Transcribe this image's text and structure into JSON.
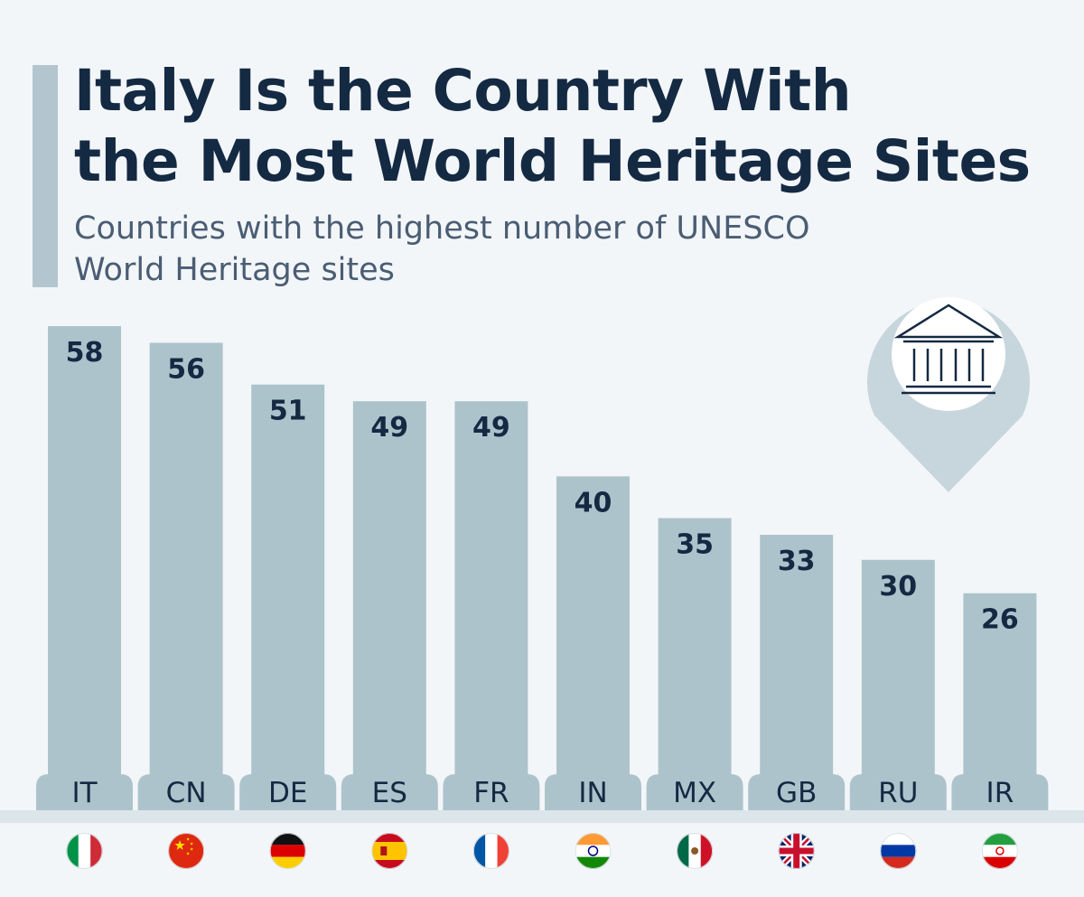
{
  "header": {
    "title_line1": "Italy Is the Country With",
    "title_line2": "the Most World Heritage Sites",
    "subtitle_line1": "Countries with the highest number of UNESCO",
    "subtitle_line2": "World Heritage sites"
  },
  "icons": {
    "pin": "map-pin-icon",
    "building": "museum-building-icon"
  },
  "colors": {
    "bar": "#adc3cc",
    "title": "#142942",
    "subtitle": "#4a5d73",
    "background": "#f3f6f9",
    "pin": "#c7d6dc"
  },
  "chart_data": {
    "type": "bar",
    "title": "Italy Is the Country With the Most World Heritage Sites",
    "subtitle": "Countries with the highest number of UNESCO World Heritage sites",
    "categories": [
      "IT",
      "CN",
      "DE",
      "ES",
      "FR",
      "IN",
      "MX",
      "GB",
      "RU",
      "IR"
    ],
    "values": [
      58,
      56,
      51,
      49,
      49,
      40,
      35,
      33,
      30,
      26
    ],
    "flags": [
      "Italy flag",
      "China flag",
      "Germany flag",
      "Spain flag",
      "France flag",
      "India flag",
      "Mexico flag",
      "United Kingdom flag",
      "Russia flag",
      "Iran flag"
    ],
    "xlabel": "",
    "ylabel": "",
    "grid": false,
    "legend": "none",
    "data_labels": "inside-top"
  }
}
